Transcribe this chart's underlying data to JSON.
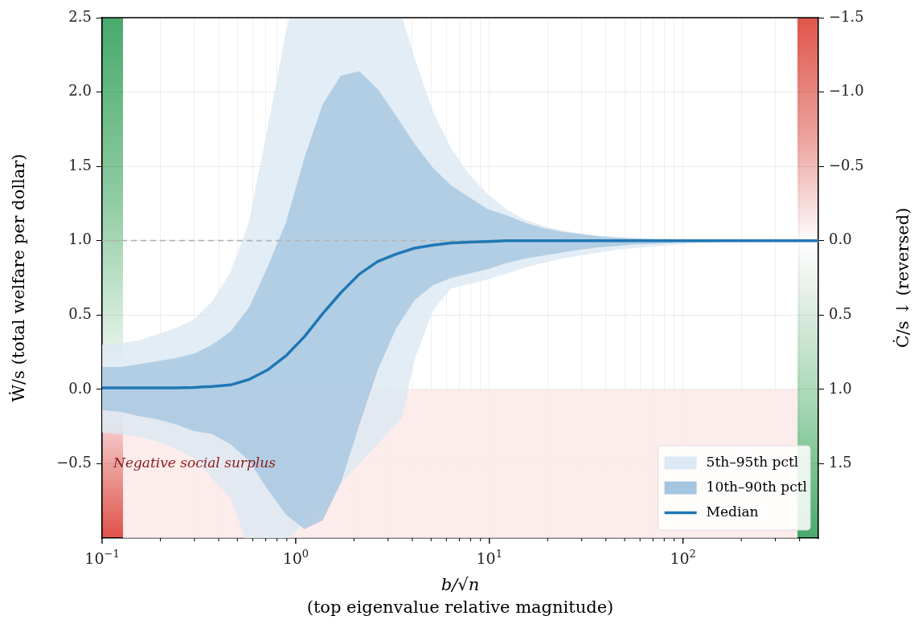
{
  "chart_data": {
    "type": "line",
    "xlabel": "b/√n\n(top eigenvalue relative magnitude)",
    "ylabel": "Ẇ/s (total welfare per dollar)",
    "y2label": "Ċ/s ↓ (reversed)",
    "log": "x",
    "grid": true,
    "legend": "bottom right",
    "xlim": [
      0.1,
      500
    ],
    "ylim": [
      -1,
      2.5
    ],
    "y2lim": [
      2.0,
      -1.5
    ],
    "xticks": [
      {
        "value": 0.1,
        "label": "10$^{−1}$"
      },
      {
        "value": 0.2,
        "label": null
      },
      {
        "value": 0.3,
        "label": null
      },
      {
        "value": 0.4,
        "label": null
      },
      {
        "value": 0.5,
        "label": null
      },
      {
        "value": 0.6,
        "label": null
      },
      {
        "value": 0.7,
        "label": null
      },
      {
        "value": 0.8,
        "label": null
      },
      {
        "value": 0.9,
        "label": null
      },
      {
        "value": 1,
        "label": "10$^{0}$"
      },
      {
        "value": 2,
        "label": null
      },
      {
        "value": 3,
        "label": null
      },
      {
        "value": 4,
        "label": null
      },
      {
        "value": 5,
        "label": null
      },
      {
        "value": 6,
        "label": null
      },
      {
        "value": 7,
        "label": null
      },
      {
        "value": 8,
        "label": null
      },
      {
        "value": 9,
        "label": null
      },
      {
        "value": 10,
        "label": "10$^{1}$"
      },
      {
        "value": 20,
        "label": null
      },
      {
        "value": 30,
        "label": null
      },
      {
        "value": 40,
        "label": null
      },
      {
        "value": 50,
        "label": null
      },
      {
        "value": 60,
        "label": null
      },
      {
        "value": 70,
        "label": null
      },
      {
        "value": 80,
        "label": null
      },
      {
        "value": 90,
        "label": null
      },
      {
        "value": 100,
        "label": "10$^{2}$"
      },
      {
        "value": 200,
        "label": null
      },
      {
        "value": 300,
        "label": null
      },
      {
        "value": 400,
        "label": null
      }
    ],
    "yticks": [
      {
        "value": -0.5,
        "label": "−0.5"
      },
      {
        "value": 0,
        "label": "0.0"
      },
      {
        "value": 0.5,
        "label": "0.5"
      },
      {
        "value": 1,
        "label": "1.0"
      },
      {
        "value": 1.5,
        "label": "1.5"
      },
      {
        "value": 2,
        "label": "2.0"
      },
      {
        "value": 2.5,
        "label": "2.5"
      }
    ],
    "y2ticks": [
      {
        "value": -1.5,
        "label": "−1.5"
      },
      {
        "value": -1,
        "label": "−1.0"
      },
      {
        "value": -0.5,
        "label": "−0.5"
      },
      {
        "value": 0,
        "label": "0.0"
      },
      {
        "value": 0.5,
        "label": "0.5"
      },
      {
        "value": 1,
        "label": "1.0"
      },
      {
        "value": 1.5,
        "label": "1.5"
      }
    ],
    "bands": [
      {
        "axis": "y",
        "from": -1,
        "to": 0,
        "label": "Negative social surplus",
        "color": "#fde7e7"
      }
    ],
    "ref_lines": [
      {
        "axis": "y",
        "value": 1,
        "line_style": "dashed",
        "color": "#b5b5b5"
      }
    ],
    "series": [
      {
        "name": "5th–95th pctl",
        "type": "line",
        "color": "#dce8f3",
        "x": [
          0.1,
          0.124,
          0.155,
          0.192,
          0.239,
          0.298,
          0.37,
          0.461,
          0.547,
          0.574,
          0.714,
          0.889,
          0.93,
          3.55,
          4.11,
          5.11,
          6.36,
          7.92,
          9.86,
          12.3,
          15.3,
          19,
          23.6,
          29.4,
          36.6,
          45.6,
          56.7,
          70.6,
          87.9,
          109,
          136,
          169,
          211,
          262,
          327,
          407,
          500
        ],
        "values": [
          null,
          null,
          null,
          null,
          null,
          null,
          null,
          null,
          null,
          null,
          null,
          null,
          null,
          null,
          null,
          null,
          null,
          null,
          null,
          null,
          null,
          null,
          null,
          null,
          null,
          null,
          null,
          null,
          null,
          null,
          null,
          null,
          null,
          null,
          null,
          null,
          null
        ],
        "upper": [
          0.3,
          0.31,
          0.33,
          0.37,
          0.41,
          0.47,
          0.59,
          0.79,
          1.05,
          1.13,
          1.75,
          2.4,
          2.5,
          2.5,
          2.23,
          1.87,
          1.62,
          1.44,
          1.31,
          1.21,
          1.14,
          1.1,
          1.07,
          1.05,
          1.035,
          1.025,
          1.02,
          1.015,
          1.01,
          1.01,
          1.005,
          1.005,
          1,
          1,
          1,
          1,
          1
        ],
        "lower": [
          -0.29,
          -0.3,
          -0.32,
          -0.35,
          -0.4,
          -0.46,
          -0.6,
          -0.73,
          -1,
          -1,
          -1,
          -1,
          -1,
          -0.19,
          0.2,
          0.53,
          0.68,
          0.71,
          0.74,
          0.78,
          0.82,
          0.85,
          0.88,
          0.9,
          0.92,
          0.94,
          0.95,
          0.96,
          0.97,
          0.98,
          0.985,
          0.99,
          0.99,
          0.995,
          0.995,
          1,
          1
        ]
      },
      {
        "name": "10th–90th pctl",
        "type": "line",
        "color": "#a5c6e0",
        "x": [
          0.1,
          0.124,
          0.155,
          0.192,
          0.239,
          0.298,
          0.37,
          0.461,
          0.574,
          0.714,
          0.889,
          1.11,
          1.38,
          1.71,
          2.13,
          2.65,
          3.3,
          4.11,
          5.11,
          6.36,
          7.92,
          9.86,
          12.3,
          15.3,
          19,
          23.6,
          29.4,
          36.6,
          45.6,
          56.7,
          70.6,
          87.9,
          109,
          136,
          169,
          211,
          262,
          327,
          407,
          500
        ],
        "values": [
          null,
          null,
          null,
          null,
          null,
          null,
          null,
          null,
          null,
          null,
          null,
          null,
          null,
          null,
          null,
          null,
          null,
          null,
          null,
          null,
          null,
          null,
          null,
          null,
          null,
          null,
          null,
          null,
          null,
          null,
          null,
          null,
          null,
          null,
          null,
          null,
          null,
          null,
          null,
          null
        ],
        "upper": [
          0.15,
          0.15,
          0.17,
          0.19,
          0.21,
          0.24,
          0.3,
          0.39,
          0.55,
          0.82,
          1.12,
          1.56,
          1.92,
          2.11,
          2.14,
          2.02,
          1.84,
          1.65,
          1.49,
          1.37,
          1.29,
          1.21,
          1.17,
          1.12,
          1.085,
          1.06,
          1.045,
          1.03,
          1.02,
          1.015,
          1.01,
          1.01,
          1.005,
          1.005,
          1,
          1,
          1,
          1,
          1,
          1
        ],
        "lower": [
          -0.14,
          -0.15,
          -0.18,
          -0.2,
          -0.235,
          -0.28,
          -0.3,
          -0.37,
          -0.48,
          -0.67,
          -0.84,
          -0.94,
          -0.88,
          -0.63,
          -0.24,
          0.13,
          0.41,
          0.6,
          0.7,
          0.75,
          0.78,
          0.81,
          0.85,
          0.88,
          0.9,
          0.92,
          0.94,
          0.955,
          0.965,
          0.975,
          0.98,
          0.985,
          0.99,
          0.99,
          0.995,
          1,
          1,
          1,
          1,
          1
        ]
      },
      {
        "name": "Median",
        "type": "line",
        "color": "#1f77b4",
        "x": [
          0.1,
          0.124,
          0.155,
          0.192,
          0.239,
          0.298,
          0.37,
          0.461,
          0.574,
          0.714,
          0.889,
          1.11,
          1.38,
          1.71,
          2.13,
          2.65,
          3.3,
          4.11,
          5.11,
          6.36,
          7.92,
          9.86,
          12.3,
          15.3,
          19,
          23.6,
          29.4,
          36.6,
          45.6,
          56.7,
          70.6,
          87.9,
          109,
          136,
          169,
          211,
          262,
          327,
          407,
          500
        ],
        "values": [
          0.01,
          0.01,
          0.01,
          0.01,
          0.01,
          0.013,
          0.02,
          0.03,
          0.067,
          0.13,
          0.225,
          0.355,
          0.51,
          0.65,
          0.775,
          0.86,
          0.91,
          0.95,
          0.97,
          0.985,
          0.99,
          0.995,
          1,
          1,
          1,
          1,
          1,
          1,
          1,
          1,
          1,
          1,
          1,
          1,
          1,
          1,
          1,
          1,
          1,
          1
        ]
      }
    ]
  }
}
